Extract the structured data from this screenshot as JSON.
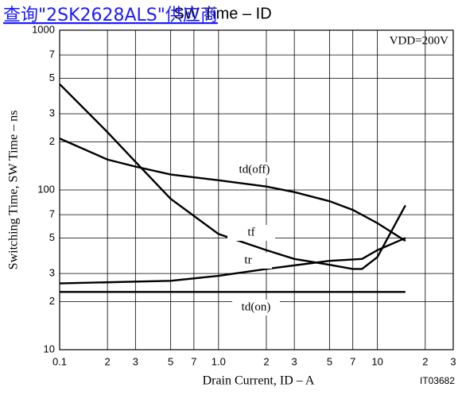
{
  "chart_data": {
    "type": "line",
    "title": "SW Time – ID",
    "watermark": "查询\"2SK2628ALS\"供应商",
    "annotation": "VDD=200V",
    "figure_id": "IT03682",
    "x_label": "Drain Current, ID – A",
    "y_label": "Switching Time, SW Time – ns",
    "xscale": "log",
    "yscale": "log",
    "grid": true,
    "xlim": [
      0.1,
      30
    ],
    "ylim": [
      10,
      1000
    ],
    "xticks": [
      0.1,
      {
        "value": 0.2,
        "label": "2"
      },
      {
        "value": 0.3,
        "label": "3"
      },
      {
        "value": 0.5,
        "label": "5"
      },
      {
        "value": 0.7,
        "label": "7"
      },
      {
        "value": 1,
        "label": "1.0"
      },
      {
        "value": 2,
        "label": "2"
      },
      {
        "value": 3,
        "label": "3"
      },
      {
        "value": 5,
        "label": "5"
      },
      {
        "value": 7,
        "label": "7"
      },
      10,
      {
        "value": 20,
        "label": "2"
      },
      {
        "value": 30,
        "label": "3"
      }
    ],
    "yticks": [
      10,
      {
        "value": 20,
        "label": "2"
      },
      {
        "value": 30,
        "label": "3"
      },
      {
        "value": 50,
        "label": "5"
      },
      {
        "value": 70,
        "label": "7"
      },
      100,
      {
        "value": 200,
        "label": "2"
      },
      {
        "value": 300,
        "label": "3"
      },
      {
        "value": 500,
        "label": "5"
      },
      {
        "value": 700,
        "label": "7"
      },
      1000
    ],
    "series": [
      {
        "name": "td(off)",
        "color": "#000000",
        "x": [
          0.1,
          0.2,
          0.3,
          0.5,
          1,
          2,
          3,
          5,
          7,
          10,
          15
        ],
        "values": [
          210,
          155,
          140,
          125,
          115,
          105,
          97,
          85,
          75,
          62,
          48
        ]
      },
      {
        "name": "tf",
        "color": "#000000",
        "x": [
          0.1,
          0.2,
          0.3,
          0.5,
          1,
          2,
          3,
          5,
          7,
          8,
          10,
          15
        ],
        "values": [
          460,
          230,
          150,
          88,
          53,
          42,
          37,
          34,
          32,
          32,
          38,
          80
        ]
      },
      {
        "name": "tr",
        "color": "#000000",
        "x": [
          0.1,
          0.5,
          1,
          2,
          5,
          8,
          10,
          15
        ],
        "values": [
          26,
          27,
          29,
          32,
          36,
          37,
          42,
          50
        ]
      },
      {
        "name": "td(on)",
        "color": "#000000",
        "x": [
          0.1,
          15
        ],
        "values": [
          23,
          23
        ]
      }
    ]
  }
}
